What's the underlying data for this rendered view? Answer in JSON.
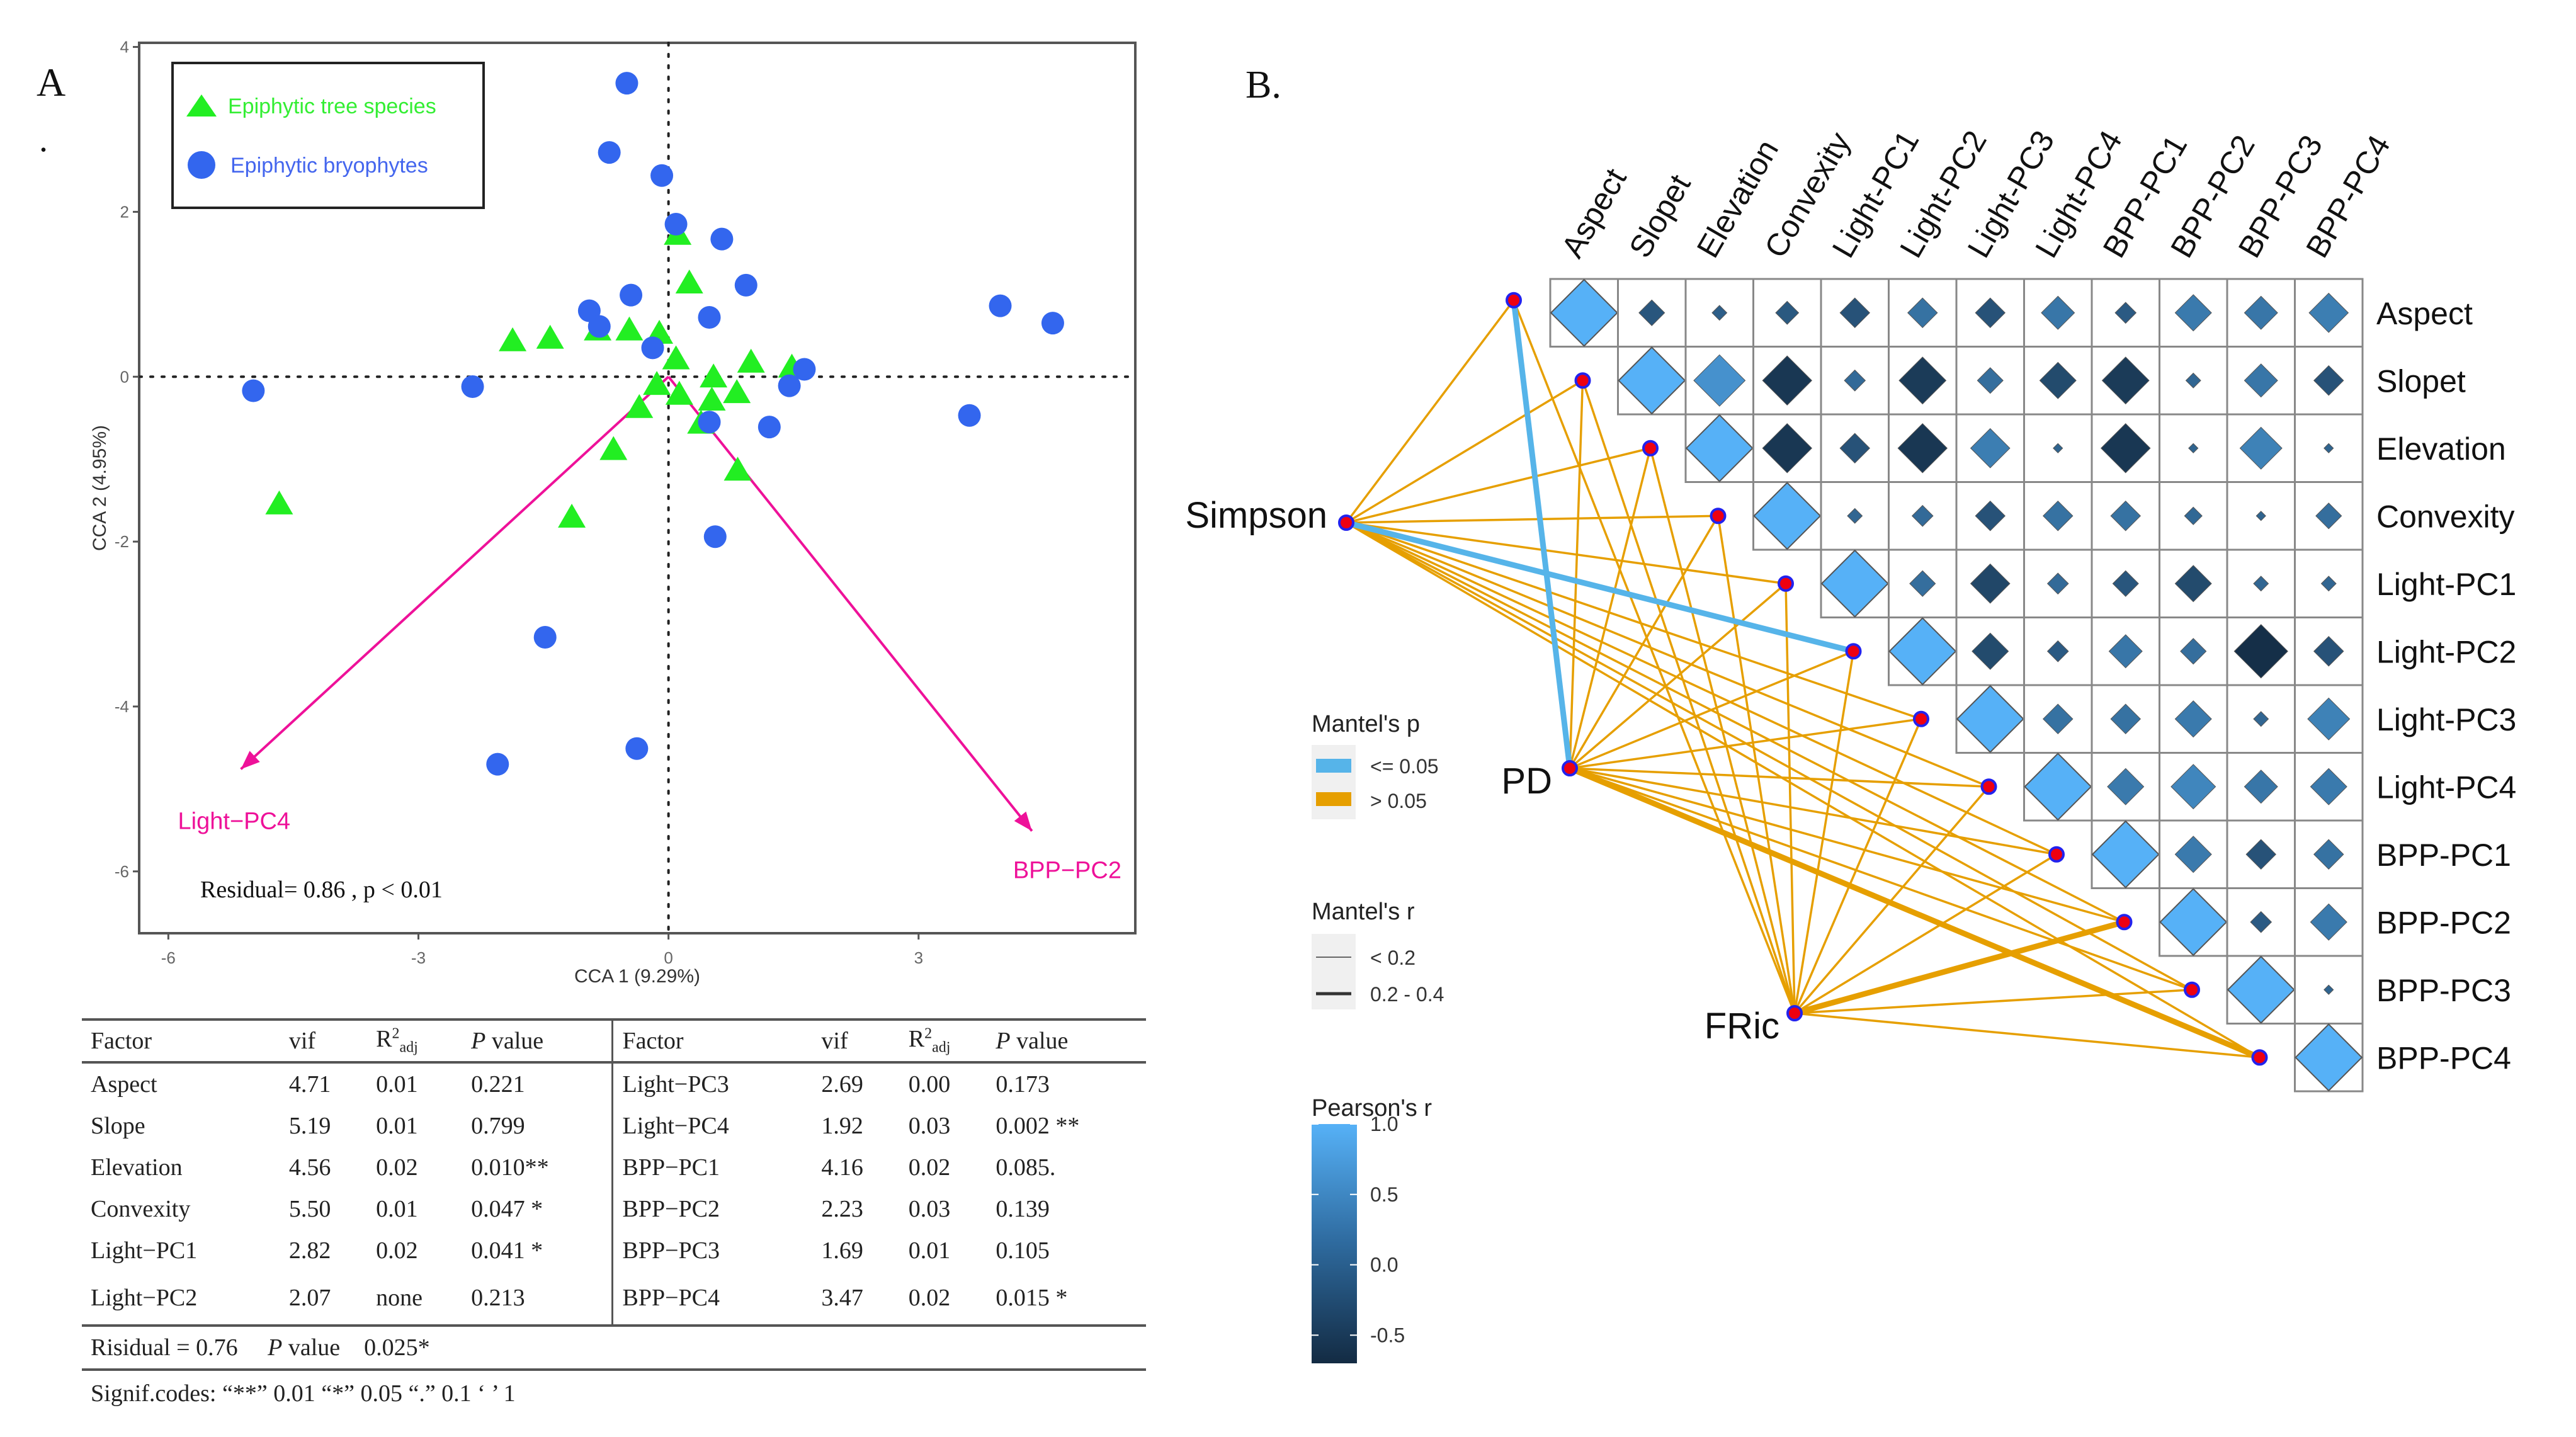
{
  "panels": {
    "a_label": "A",
    "a_dot": ".",
    "b_label": "B."
  },
  "chart_data": [
    {
      "type": "scatter",
      "title": "",
      "xlabel": "CCA 1 (9.29%)",
      "ylabel": "CCA 2 (4.95%)",
      "xlim": [
        -6.35,
        5.6
      ],
      "ylim": [
        -6.75,
        4.05
      ],
      "xticks": [
        -6,
        -3,
        0,
        3
      ],
      "yticks": [
        4,
        2,
        0,
        -2,
        -4,
        -6
      ],
      "xtick_labels": [
        "-6",
        "-3",
        "0",
        "3"
      ],
      "ytick_labels": [
        "4",
        "2",
        "0",
        "-2",
        "-4",
        "-6"
      ],
      "reference_lines": {
        "x": 0,
        "y": 0,
        "style": "dotted"
      },
      "grid": false,
      "legend": {
        "placement": "top-left",
        "entries": [
          {
            "label": "Epiphytic tree species",
            "marker": "triangle",
            "color": "#22EE22"
          },
          {
            "label": "Epiphytic bryophytes",
            "marker": "circle",
            "color": "#3366EE"
          }
        ]
      },
      "series": [
        {
          "name": "Epiphytic tree species",
          "marker": "triangle",
          "color": "#22EE22",
          "points": [
            [
              0.11,
              1.71
            ],
            [
              0.25,
              1.12
            ],
            [
              -1.87,
              0.42
            ],
            [
              -1.42,
              0.45
            ],
            [
              -0.85,
              0.55
            ],
            [
              -0.47,
              0.55
            ],
            [
              -0.11,
              0.51
            ],
            [
              0.09,
              0.2
            ],
            [
              0.99,
              0.16
            ],
            [
              1.48,
              0.1
            ],
            [
              0.54,
              -0.02
            ],
            [
              -0.14,
              -0.11
            ],
            [
              0.13,
              -0.23
            ],
            [
              0.82,
              -0.21
            ],
            [
              0.52,
              -0.3
            ],
            [
              -0.35,
              -0.39
            ],
            [
              0.39,
              -0.58
            ],
            [
              -0.66,
              -0.9
            ],
            [
              0.83,
              -1.15
            ],
            [
              -1.16,
              -1.72
            ],
            [
              -4.67,
              -1.56
            ]
          ]
        },
        {
          "name": "Epiphytic bryophytes",
          "marker": "circle",
          "color": "#3366EE",
          "points": [
            [
              -0.5,
              3.56
            ],
            [
              -0.71,
              2.72
            ],
            [
              -0.08,
              2.44
            ],
            [
              0.09,
              1.85
            ],
            [
              0.64,
              1.67
            ],
            [
              0.93,
              1.11
            ],
            [
              -0.45,
              0.99
            ],
            [
              -0.95,
              0.8
            ],
            [
              -0.83,
              0.61
            ],
            [
              0.49,
              0.72
            ],
            [
              -0.19,
              0.35
            ],
            [
              1.63,
              0.09
            ],
            [
              1.45,
              -0.11
            ],
            [
              0.49,
              -0.55
            ],
            [
              1.21,
              -0.61
            ],
            [
              0.56,
              -1.94
            ],
            [
              -2.35,
              -0.12
            ],
            [
              -4.98,
              -0.17
            ],
            [
              3.98,
              0.86
            ],
            [
              4.61,
              0.65
            ],
            [
              3.61,
              -0.47
            ],
            [
              -1.48,
              -3.16
            ],
            [
              -2.05,
              -4.7
            ],
            [
              -0.38,
              -4.51
            ]
          ]
        }
      ],
      "arrows": [
        {
          "label": "Light−PC4",
          "end": [
            -5.13,
            -4.76
          ],
          "color": "#EE1199"
        },
        {
          "label": "BPP−PC2",
          "end": [
            4.36,
            -5.51
          ],
          "color": "#EE1199"
        }
      ],
      "annotations": [
        {
          "text": "Residual= 0.86 , p < 0.01",
          "at": [
            -5.6,
            -6.05
          ]
        }
      ]
    },
    {
      "type": "heatmap",
      "subtype": "mantel-correlogram",
      "variables": [
        "Aspect",
        "Slopet",
        "Elevation",
        "Convexity",
        "Light-PC1",
        "Light-PC2",
        "Light-PC3",
        "Light-PC4",
        "BPP-PC1",
        "BPP-PC2",
        "BPP-PC3",
        "BPP-PC4"
      ],
      "pearson_upper": [
        [
          1,
          -0.15,
          -0.05,
          -0.12,
          -0.2,
          0.2,
          -0.2,
          0.25,
          -0.1,
          0.3,
          0.25,
          0.35
        ],
        [
          1,
          0.6,
          -0.55,
          0.1,
          -0.5,
          0.15,
          -0.3,
          -0.5,
          0.05,
          0.25,
          -0.2
        ],
        [
          1,
          -0.55,
          -0.2,
          -0.55,
          0.35,
          0.02,
          -0.55,
          0.02,
          0.4,
          0.02
        ],
        [
          1,
          0.05,
          0.1,
          -0.2,
          0.2,
          0.2,
          0.07,
          0.02,
          0.15
        ],
        [
          1,
          0.15,
          -0.35,
          0.1,
          -0.15,
          -0.3,
          0.05,
          0.05
        ],
        [
          1,
          -0.3,
          -0.1,
          0.25,
          0.15,
          -0.65,
          -0.2
        ],
        [
          1,
          0.2,
          0.2,
          0.3,
          0.05,
          0.4
        ],
        [
          1,
          0.3,
          0.45,
          0.25,
          0.3
        ],
        [
          1,
          0.3,
          -0.2,
          0.2
        ],
        [
          1,
          -0.1,
          0.3
        ],
        [
          1,
          0.02
        ],
        [
          1
        ]
      ],
      "sources": [
        "Simpson",
        "PD",
        "FRic"
      ],
      "mantel_links": [
        {
          "from": "Simpson",
          "to": "Aspect",
          "p_class": "> 0.05",
          "r_class": "< 0.2"
        },
        {
          "from": "Simpson",
          "to": "Slopet",
          "p_class": "> 0.05",
          "r_class": "< 0.2"
        },
        {
          "from": "Simpson",
          "to": "Elevation",
          "p_class": "> 0.05",
          "r_class": "< 0.2"
        },
        {
          "from": "Simpson",
          "to": "Convexity",
          "p_class": "> 0.05",
          "r_class": "< 0.2"
        },
        {
          "from": "Simpson",
          "to": "Light-PC1",
          "p_class": "> 0.05",
          "r_class": "< 0.2"
        },
        {
          "from": "Simpson",
          "to": "Light-PC2",
          "p_class": "<= 0.05",
          "r_class": "0.2 - 0.4"
        },
        {
          "from": "Simpson",
          "to": "Light-PC3",
          "p_class": "> 0.05",
          "r_class": "< 0.2"
        },
        {
          "from": "Simpson",
          "to": "Light-PC4",
          "p_class": "> 0.05",
          "r_class": "< 0.2"
        },
        {
          "from": "Simpson",
          "to": "BPP-PC1",
          "p_class": "> 0.05",
          "r_class": "< 0.2"
        },
        {
          "from": "Simpson",
          "to": "BPP-PC2",
          "p_class": "> 0.05",
          "r_class": "< 0.2"
        },
        {
          "from": "Simpson",
          "to": "BPP-PC3",
          "p_class": "> 0.05",
          "r_class": "< 0.2"
        },
        {
          "from": "Simpson",
          "to": "BPP-PC4",
          "p_class": "> 0.05",
          "r_class": "< 0.2"
        },
        {
          "from": "PD",
          "to": "Aspect",
          "p_class": "<= 0.05",
          "r_class": "0.2 - 0.4"
        },
        {
          "from": "PD",
          "to": "Slopet",
          "p_class": "> 0.05",
          "r_class": "< 0.2"
        },
        {
          "from": "PD",
          "to": "Elevation",
          "p_class": "> 0.05",
          "r_class": "< 0.2"
        },
        {
          "from": "PD",
          "to": "Convexity",
          "p_class": "> 0.05",
          "r_class": "< 0.2"
        },
        {
          "from": "PD",
          "to": "Light-PC1",
          "p_class": "> 0.05",
          "r_class": "< 0.2"
        },
        {
          "from": "PD",
          "to": "Light-PC2",
          "p_class": "> 0.05",
          "r_class": "< 0.2"
        },
        {
          "from": "PD",
          "to": "Light-PC3",
          "p_class": "> 0.05",
          "r_class": "< 0.2"
        },
        {
          "from": "PD",
          "to": "Light-PC4",
          "p_class": "> 0.05",
          "r_class": "< 0.2"
        },
        {
          "from": "PD",
          "to": "BPP-PC1",
          "p_class": "> 0.05",
          "r_class": "< 0.2"
        },
        {
          "from": "PD",
          "to": "BPP-PC2",
          "p_class": "> 0.05",
          "r_class": "< 0.2"
        },
        {
          "from": "PD",
          "to": "BPP-PC3",
          "p_class": "> 0.05",
          "r_class": "< 0.2"
        },
        {
          "from": "PD",
          "to": "BPP-PC4",
          "p_class": "> 0.05",
          "r_class": "0.2 - 0.4"
        },
        {
          "from": "FRic",
          "to": "Aspect",
          "p_class": "> 0.05",
          "r_class": "< 0.2"
        },
        {
          "from": "FRic",
          "to": "Slopet",
          "p_class": "> 0.05",
          "r_class": "< 0.2"
        },
        {
          "from": "FRic",
          "to": "Elevation",
          "p_class": "> 0.05",
          "r_class": "< 0.2"
        },
        {
          "from": "FRic",
          "to": "Convexity",
          "p_class": "> 0.05",
          "r_class": "< 0.2"
        },
        {
          "from": "FRic",
          "to": "Light-PC1",
          "p_class": "> 0.05",
          "r_class": "< 0.2"
        },
        {
          "from": "FRic",
          "to": "Light-PC2",
          "p_class": "> 0.05",
          "r_class": "< 0.2"
        },
        {
          "from": "FRic",
          "to": "Light-PC3",
          "p_class": "> 0.05",
          "r_class": "< 0.2"
        },
        {
          "from": "FRic",
          "to": "Light-PC4",
          "p_class": "> 0.05",
          "r_class": "< 0.2"
        },
        {
          "from": "FRic",
          "to": "BPP-PC1",
          "p_class": "> 0.05",
          "r_class": "< 0.2"
        },
        {
          "from": "FRic",
          "to": "BPP-PC2",
          "p_class": "> 0.05",
          "r_class": "0.2 - 0.4"
        },
        {
          "from": "FRic",
          "to": "BPP-PC3",
          "p_class": "> 0.05",
          "r_class": "< 0.2"
        },
        {
          "from": "FRic",
          "to": "BPP-PC4",
          "p_class": "> 0.05",
          "r_class": "< 0.2"
        }
      ],
      "legends": {
        "mantel_p": {
          "title": "Mantel's p",
          "items": [
            {
              "label": "<= 0.05",
              "color": "#56B4E9"
            },
            {
              "label": "> 0.05",
              "color": "#E69F00"
            }
          ]
        },
        "mantel_r": {
          "title": "Mantel's r",
          "items": [
            {
              "label": "< 0.2"
            },
            {
              "label": "0.2 - 0.4"
            }
          ]
        },
        "pearson_r": {
          "title": "Pearson's r",
          "ticks": [
            1.0,
            0.5,
            0.0,
            -0.5
          ],
          "tick_labels": [
            "1.0",
            "0.5",
            "0.0",
            "-0.5"
          ],
          "range": [
            -0.7,
            1.0
          ],
          "colors": [
            "#132B43",
            "#56B1F7"
          ]
        }
      }
    }
  ],
  "table": {
    "headers": [
      "Factor",
      "vif",
      "R",
      "P value",
      "Factor",
      "vif",
      "R",
      "P value"
    ],
    "r2_sup": "2",
    "r2_sub": "adj",
    "p_italic": "P",
    "p_rest": " value",
    "rows": [
      [
        "Aspect",
        "4.71",
        "0.01",
        "0.221",
        "Light−PC3",
        "2.69",
        "0.00",
        "0.173"
      ],
      [
        "Slope",
        "5.19",
        "0.01",
        "0.799",
        "Light−PC4",
        "1.92",
        "0.03",
        "0.002 **"
      ],
      [
        "Elevation",
        "4.56",
        "0.02",
        "0.010**",
        "BPP−PC1",
        "4.16",
        "0.02",
        "0.085."
      ],
      [
        "Convexity",
        "5.50",
        "0.01",
        "0.047 *",
        "BPP−PC2",
        "2.23",
        "0.03",
        "0.139"
      ],
      [
        "Light−PC1",
        "2.82",
        "0.02",
        "0.041 *",
        "BPP−PC3",
        "1.69",
        "0.01",
        "0.105"
      ],
      [
        "Light−PC2",
        "2.07",
        "none",
        "0.213",
        "BPP−PC4",
        "3.47",
        "0.02",
        "0.015 *"
      ]
    ],
    "residual": {
      "label": "Risidual = 0.76",
      "p_italic": "P",
      "p_label": " value",
      "p_value": "0.025*"
    },
    "signif": "Signif.codes:   “**” 0.01 “*” 0.05 “.” 0.1 ‘ ’ 1"
  }
}
